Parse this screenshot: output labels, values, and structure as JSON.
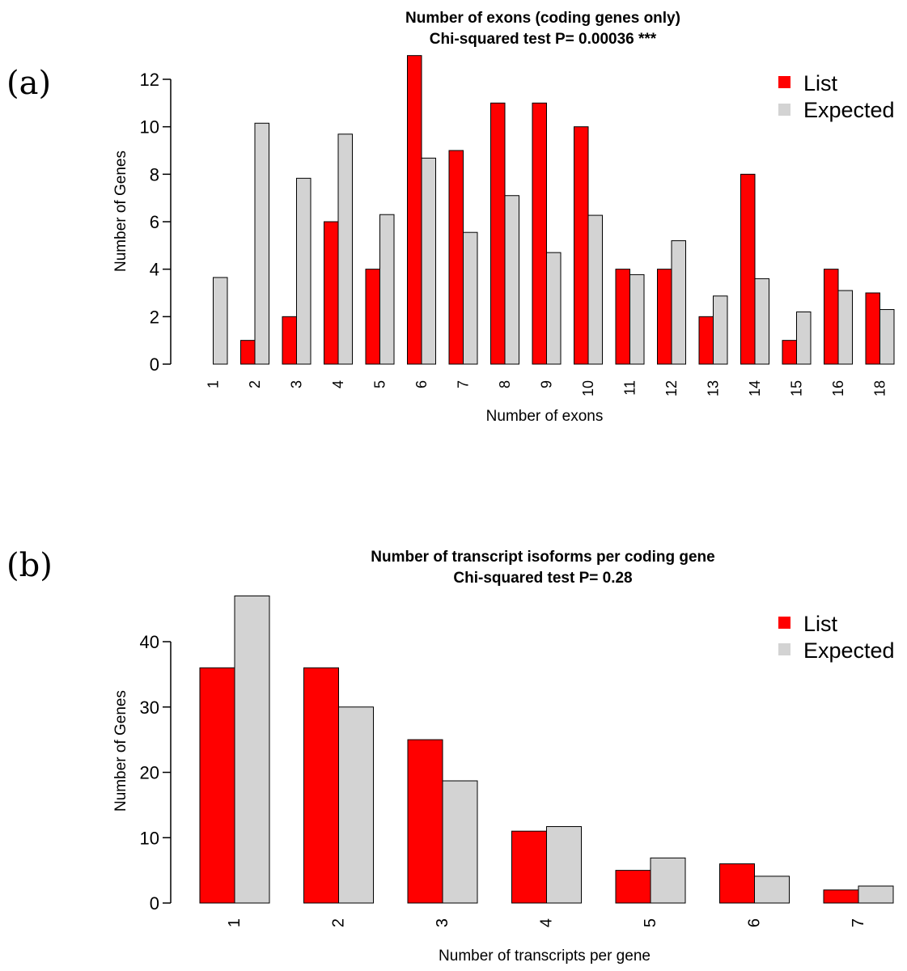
{
  "panels": [
    {
      "letter": "(a)"
    },
    {
      "letter": "(b)"
    }
  ],
  "colors": {
    "list": "#ff0000",
    "expected": "#d3d3d3"
  },
  "chart_data": [
    {
      "type": "bar",
      "title": "Number of exons (coding genes only)",
      "subtitle": "Chi-squared test P= 0.00036 ***",
      "xlabel": "Number of exons",
      "ylabel": "Number of Genes",
      "categories": [
        "1",
        "2",
        "3",
        "4",
        "5",
        "6",
        "7",
        "8",
        "9",
        "10",
        "11",
        "12",
        "13",
        "14",
        "15",
        "16",
        "18"
      ],
      "series": [
        {
          "name": "List",
          "color": "#ff0000",
          "values": [
            0,
            1,
            2,
            6,
            4,
            13,
            9,
            11,
            11,
            10,
            4,
            4,
            2,
            8,
            1,
            4,
            3
          ]
        },
        {
          "name": "Expected",
          "color": "#d3d3d3",
          "values": [
            3.65,
            10.15,
            7.83,
            9.69,
            6.3,
            8.68,
            5.55,
            7.1,
            4.7,
            6.27,
            3.77,
            5.2,
            2.87,
            3.6,
            2.2,
            3.1,
            2.3
          ]
        }
      ],
      "yticks": [
        0,
        2,
        4,
        6,
        8,
        10,
        12
      ],
      "ylim": [
        0,
        13
      ],
      "legend": "top-right"
    },
    {
      "type": "bar",
      "title": "Number of transcript isoforms per coding gene",
      "subtitle": "Chi-squared test P= 0.28",
      "xlabel": "Number of transcripts per gene",
      "ylabel": "Number of Genes",
      "categories": [
        "1",
        "2",
        "3",
        "4",
        "5",
        "6",
        "7"
      ],
      "series": [
        {
          "name": "List",
          "color": "#ff0000",
          "values": [
            36,
            36,
            25,
            11,
            5,
            6,
            2
          ]
        },
        {
          "name": "Expected",
          "color": "#d3d3d3",
          "values": [
            47,
            30,
            18.7,
            11.7,
            6.9,
            4.1,
            2.6
          ]
        }
      ],
      "yticks": [
        0,
        10,
        20,
        30,
        40
      ],
      "ylim": [
        0,
        47
      ],
      "legend": "top-right"
    }
  ]
}
